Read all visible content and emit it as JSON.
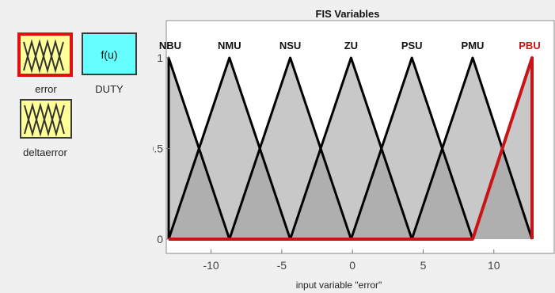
{
  "inputs": [
    {
      "id": "error",
      "label": "error",
      "selected": true
    },
    {
      "id": "deltaerror",
      "label": "deltaerror",
      "selected": false
    }
  ],
  "outputs": [
    {
      "id": "DUTY",
      "label": "DUTY",
      "function_text": "f(u)"
    }
  ],
  "plot": {
    "title": "FIS Variables",
    "xlabel": "input variable \"error\"",
    "xlim": [
      -13,
      12.7
    ],
    "ylim": [
      0,
      1
    ],
    "xticks": [
      -10,
      -5,
      0,
      5,
      10
    ],
    "xtick_labels": [
      "-10",
      "-5",
      "0",
      "5",
      "10"
    ],
    "yticks": [
      0,
      0.5,
      1
    ],
    "ytick_labels": [
      "0",
      "0.5",
      "1"
    ],
    "selected_mf": "PBU",
    "colors": {
      "selected_mf": "#c81414",
      "mf_line": "#000000",
      "fill": "#9a9a9a",
      "background": "#ffffff"
    }
  },
  "chart_data": {
    "type": "line",
    "title": "FIS Variables",
    "xlabel": "input variable \"error\"",
    "ylabel": "",
    "xlim": [
      -13,
      12.7
    ],
    "ylim": [
      0,
      1
    ],
    "grid": false,
    "series": [
      {
        "name": "NBU",
        "points": [
          [
            -13,
            0
          ],
          [
            -13,
            1
          ],
          [
            -8.7,
            0
          ]
        ]
      },
      {
        "name": "NMU",
        "points": [
          [
            -13,
            0
          ],
          [
            -8.7,
            1
          ],
          [
            -4.4,
            0
          ]
        ]
      },
      {
        "name": "NSU",
        "points": [
          [
            -8.7,
            0
          ],
          [
            -4.4,
            1
          ],
          [
            -0.1,
            0
          ]
        ]
      },
      {
        "name": "ZU",
        "points": [
          [
            -4.4,
            0
          ],
          [
            -0.1,
            1
          ],
          [
            4.2,
            0
          ]
        ]
      },
      {
        "name": "PSU",
        "points": [
          [
            -0.1,
            0
          ],
          [
            4.2,
            1
          ],
          [
            8.5,
            0
          ]
        ]
      },
      {
        "name": "PMU",
        "points": [
          [
            4.2,
            0
          ],
          [
            8.5,
            1
          ],
          [
            12.7,
            0
          ]
        ]
      },
      {
        "name": "PBU",
        "points": [
          [
            -13,
            0
          ],
          [
            8.5,
            0
          ],
          [
            12.7,
            1
          ],
          [
            12.7,
            0
          ]
        ]
      }
    ]
  }
}
